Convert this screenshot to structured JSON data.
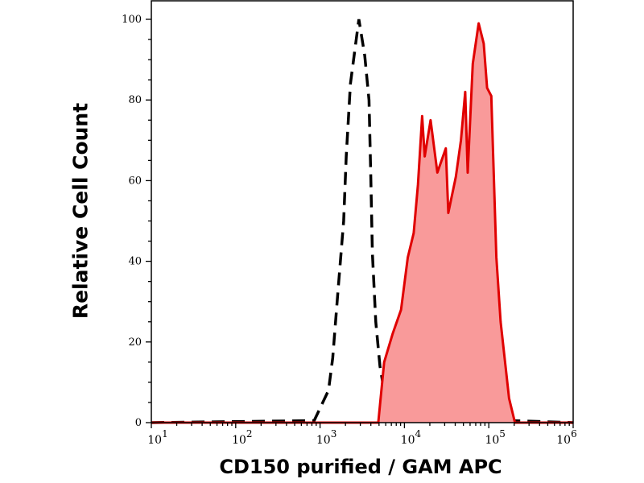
{
  "chart_data": {
    "type": "area",
    "title": "",
    "xlabel": "CD150 purified / GAM APC",
    "ylabel": "Relative Cell Count",
    "xscale": "log",
    "xlim": [
      10,
      1000000
    ],
    "ylim": [
      0,
      100
    ],
    "x_ticks": [
      10,
      100,
      1000,
      10000,
      100000,
      1000000
    ],
    "x_tick_labels": [
      {
        "base": "10",
        "exp": "1"
      },
      {
        "base": "10",
        "exp": "2"
      },
      {
        "base": "10",
        "exp": "3"
      },
      {
        "base": "10",
        "exp": "4"
      },
      {
        "base": "10",
        "exp": "5"
      },
      {
        "base": "10",
        "exp": "6"
      }
    ],
    "y_ticks": [
      0,
      20,
      40,
      60,
      80,
      100
    ],
    "y_tick_labels": [
      "0",
      "20",
      "40",
      "60",
      "80",
      "100"
    ],
    "grid": false,
    "series": [
      {
        "style": "dashed-line",
        "color": "#000000",
        "x": [
          10,
          851,
          1259,
          1413,
          1622,
          1905,
          2042,
          2291,
          2884,
          3388,
          3802,
          3981,
          4169,
          4571,
          5129,
          6457,
          1000000
        ],
        "y": [
          0,
          0.5,
          8,
          16,
          32,
          50,
          66,
          84,
          100,
          91,
          80,
          62,
          42,
          25,
          14,
          1.5,
          0
        ]
      },
      {
        "style": "filled",
        "color": "#e00000",
        "fill": "#f99a9a",
        "x": [
          10,
          4898,
          5754,
          7244,
          9120,
          10965,
          12882,
          14454,
          16218,
          17378,
          20417,
          24547,
          30903,
          33113,
          40738,
          46774,
          52481,
          56234,
          64565,
          75858,
          87096,
          95499,
          107152,
          123027,
          138038,
          173780,
          204174,
          1000000
        ],
        "y": [
          0,
          0,
          15,
          22,
          28,
          41,
          47,
          59,
          76,
          66,
          75,
          62,
          68,
          52,
          61,
          70,
          82,
          62,
          89,
          99,
          94,
          83,
          81,
          41,
          25,
          6,
          0,
          0
        ]
      }
    ]
  }
}
